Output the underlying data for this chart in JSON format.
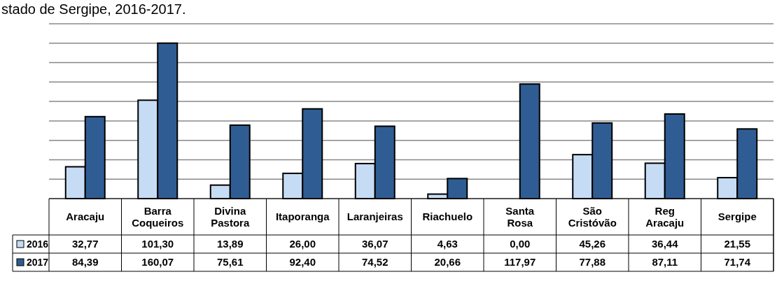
{
  "chart_data": {
    "type": "bar",
    "title": "stado de Sergipe, 2016-2017.",
    "categories": [
      "Aracaju",
      "Barra Coqueiros",
      "Divina Pastora",
      "Itaporanga",
      "Laranjeiras",
      "Riachuelo",
      "Santa Rosa",
      "São Cristóvão",
      "Reg Aracaju",
      "Sergipe"
    ],
    "series": [
      {
        "name": "2016",
        "color": "#c6dcf5",
        "values": [
          32.77,
          101.3,
          13.89,
          26.0,
          36.07,
          4.63,
          0.0,
          45.26,
          36.44,
          21.55
        ],
        "value_labels": [
          "32,77",
          "101,30",
          "13,89",
          "26,00",
          "36,07",
          "4,63",
          "0,00",
          "45,26",
          "36,44",
          "21,55"
        ]
      },
      {
        "name": "2017",
        "color": "#2f5d93",
        "values": [
          84.39,
          160.07,
          75.61,
          92.4,
          74.52,
          20.66,
          117.97,
          77.88,
          87.11,
          71.74
        ],
        "value_labels": [
          "84,39",
          "160,07",
          "75,61",
          "92,40",
          "74,52",
          "20,66",
          "117,97",
          "77,88",
          "87,11",
          "71,74"
        ]
      }
    ],
    "ylim": [
      0,
      180
    ],
    "yticks": [
      {
        "value": 0,
        "label": null
      },
      {
        "value": 20,
        "label": null
      },
      {
        "value": 40,
        "label": null
      },
      {
        "value": 60,
        "label": null
      },
      {
        "value": 80,
        "label": null
      },
      {
        "value": 100,
        "label": null
      },
      {
        "value": 120,
        "label": null
      },
      {
        "value": 140,
        "label": null
      },
      {
        "value": 160,
        "label": null
      },
      {
        "value": 180,
        "label": null
      }
    ],
    "grid": "y",
    "tick_labels": "x",
    "legend": "bottom left"
  }
}
